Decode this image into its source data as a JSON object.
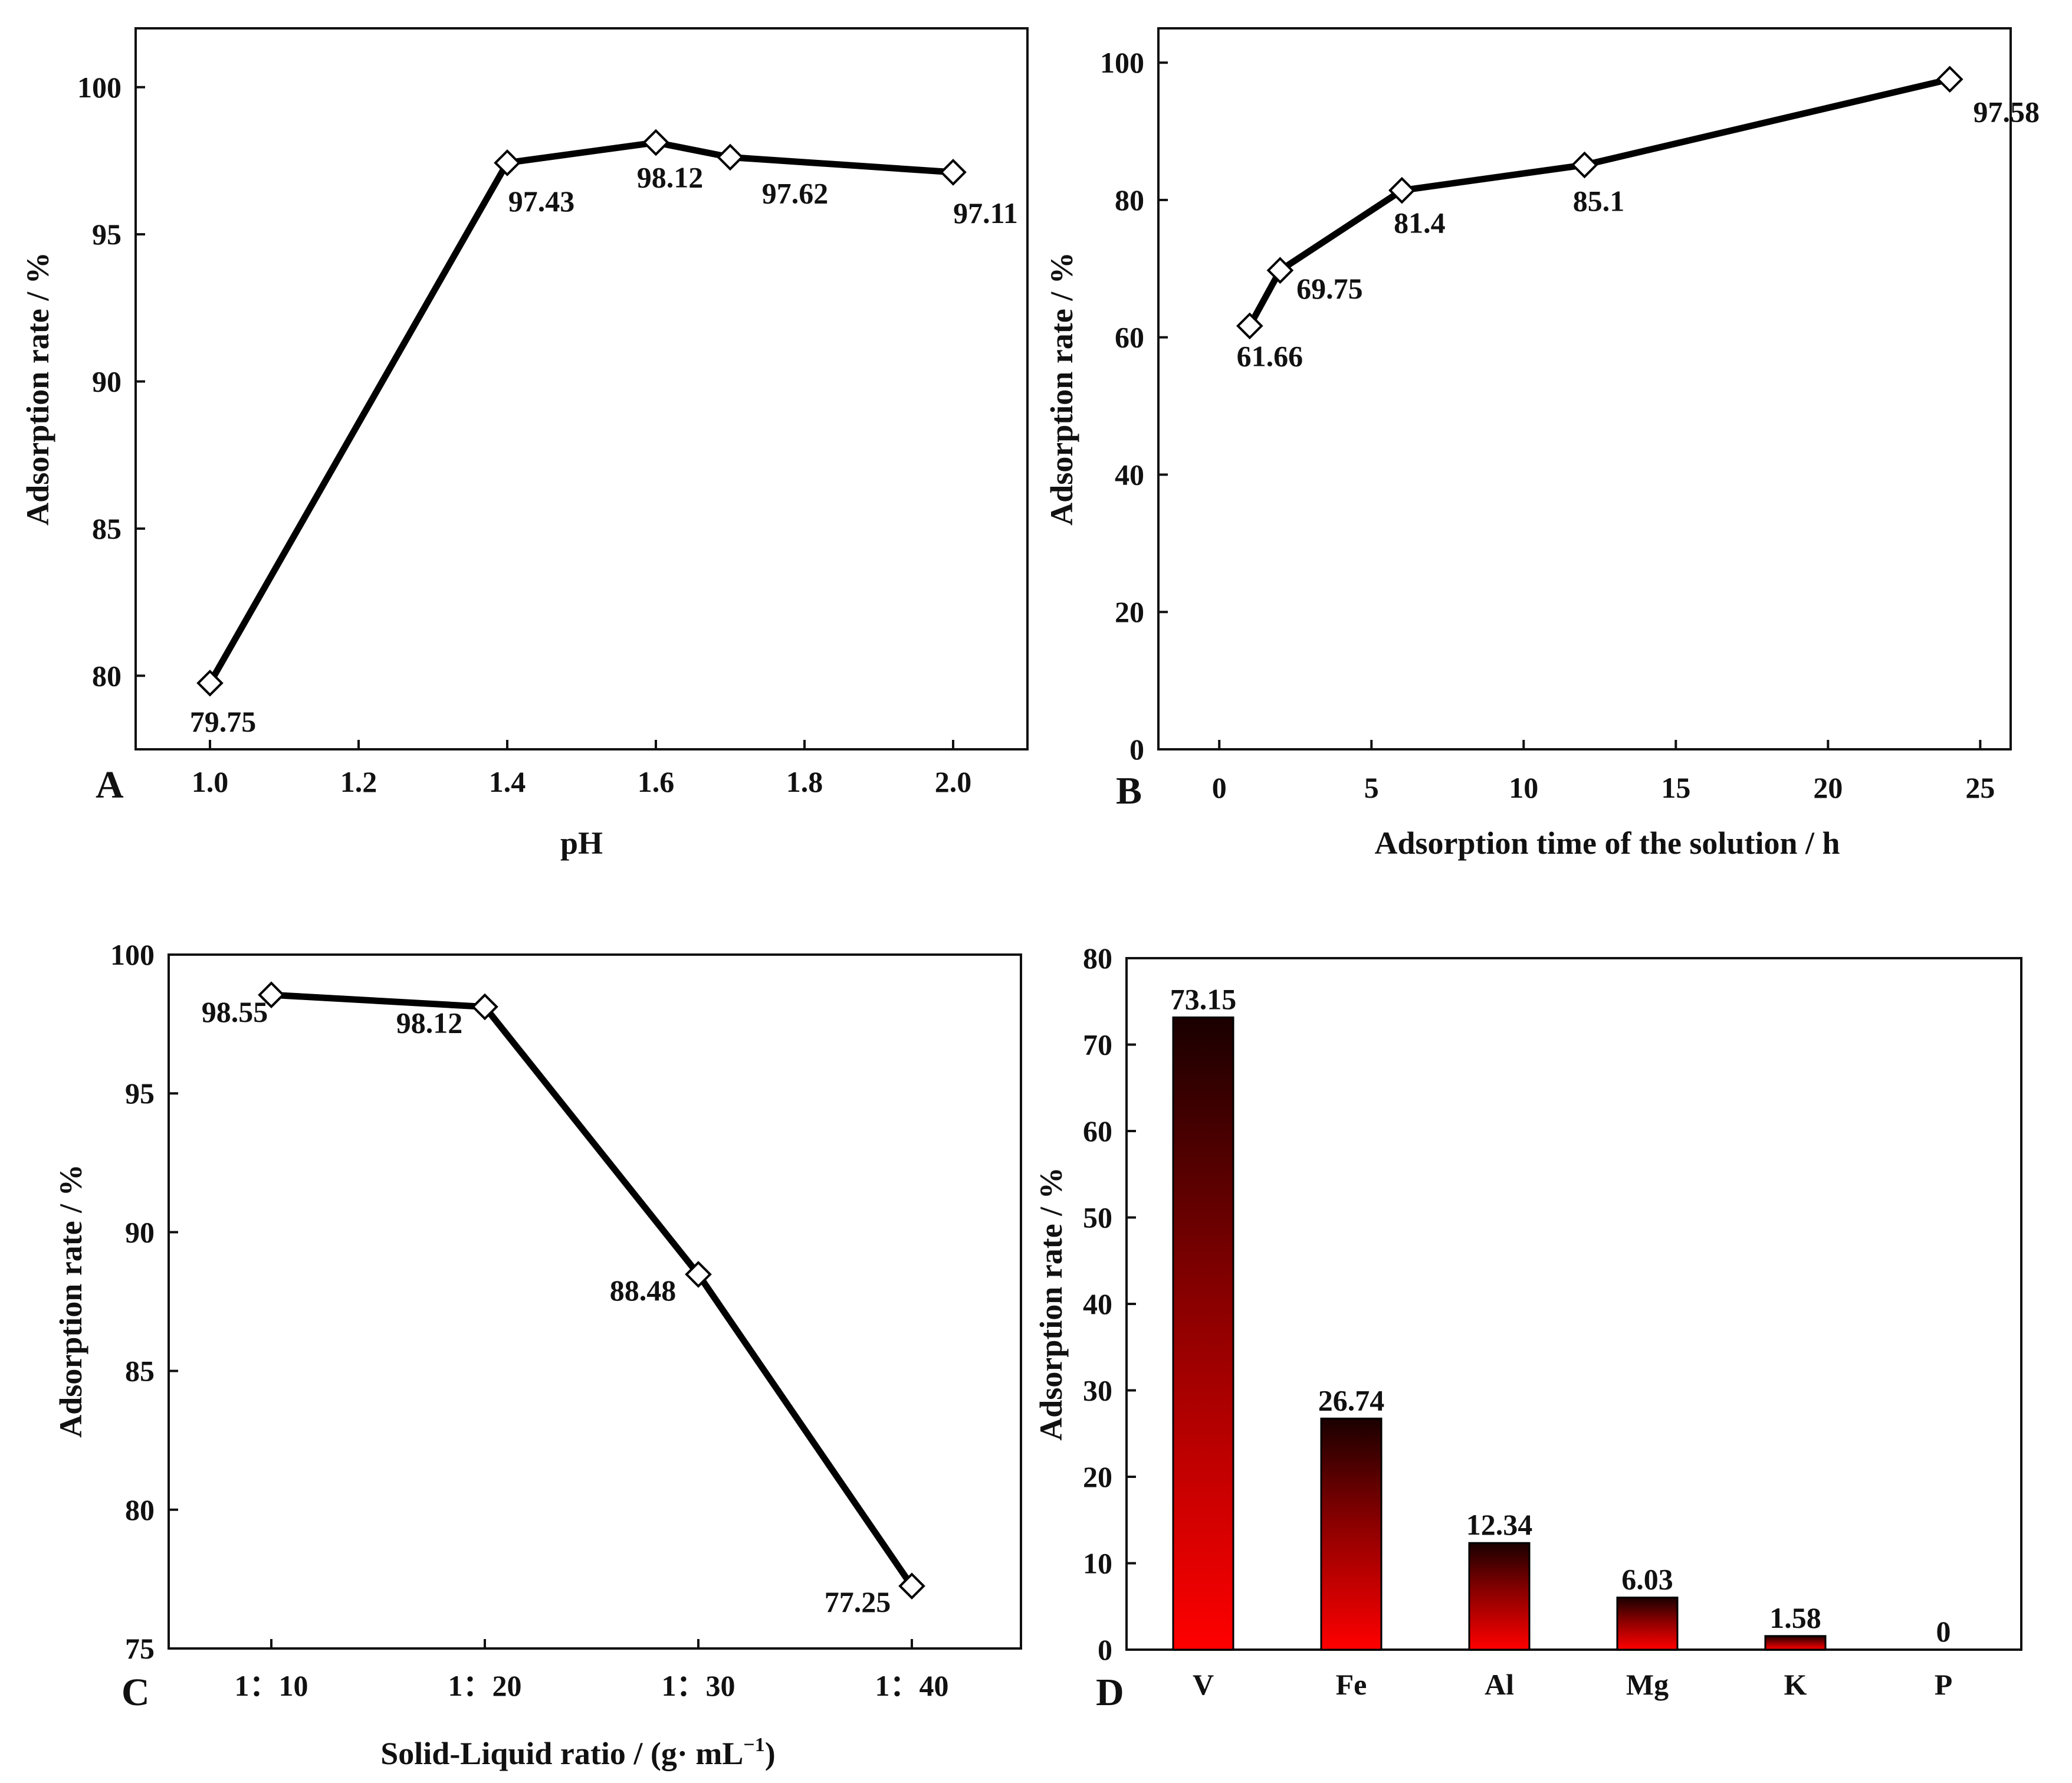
{
  "colors": {
    "line": "#000000",
    "bar_top": "#1a0000",
    "bar_bottom": "#ff0000",
    "background": "#ffffff"
  },
  "chart_data": [
    {
      "panel": "A",
      "type": "line",
      "xlabel": "pH",
      "ylabel": "Adsorption rate / %",
      "x": [
        1.0,
        1.4,
        1.6,
        1.7,
        2.0
      ],
      "values": [
        79.75,
        97.43,
        98.12,
        97.62,
        97.11
      ],
      "labels": [
        "79.75",
        "97.43",
        "98.12",
        "97.62",
        "97.11"
      ],
      "xlim": [
        0.9,
        2.1
      ],
      "ylim": [
        77.5,
        102
      ],
      "xticks": [
        1.0,
        1.2,
        1.4,
        1.6,
        1.8,
        2.0
      ],
      "xtick_labels": [
        "1.0",
        "1.2",
        "1.4",
        "1.6",
        "1.8",
        "2.0"
      ],
      "yticks": [
        80,
        85,
        90,
        95,
        100
      ],
      "ytick_labels": [
        "80",
        "85",
        "90",
        "95",
        "100"
      ],
      "marker": "open-diamond"
    },
    {
      "panel": "B",
      "type": "line",
      "xlabel": "Adsorption time of the solution / h",
      "ylabel": "Adsorption rate / %",
      "x": [
        1,
        2,
        6,
        12,
        24
      ],
      "values": [
        61.66,
        69.75,
        81.4,
        85.1,
        97.58
      ],
      "labels": [
        "61.66",
        "69.75",
        "81.4",
        "85.1",
        "97.58"
      ],
      "xlim": [
        -2,
        26
      ],
      "ylim": [
        0,
        105
      ],
      "xticks": [
        0,
        5,
        10,
        15,
        20,
        25
      ],
      "xtick_labels": [
        "0",
        "5",
        "10",
        "15",
        "20",
        "25"
      ],
      "yticks": [
        0,
        20,
        40,
        60,
        80,
        100
      ],
      "ytick_labels": [
        "0",
        "20",
        "40",
        "60",
        "80",
        "100"
      ],
      "marker": "open-diamond"
    },
    {
      "panel": "C",
      "type": "line",
      "xlabel": "Solid-Liquid ratio / (g· mL",
      "xlabel_sup": "−1",
      "xlabel_end": ")",
      "ylabel": "Adsorption rate / %",
      "categories": [
        "1：10",
        "1：20",
        "1：30",
        "1：40"
      ],
      "values": [
        98.55,
        98.12,
        88.48,
        77.25
      ],
      "labels": [
        "98.55",
        "98.12",
        "88.48",
        "77.25"
      ],
      "ylim": [
        75,
        100
      ],
      "yticks": [
        75,
        80,
        85,
        90,
        95,
        100
      ],
      "ytick_labels": [
        "75",
        "80",
        "85",
        "90",
        "95",
        "100"
      ],
      "marker": "open-diamond"
    },
    {
      "panel": "D",
      "type": "bar",
      "xlabel": "",
      "ylabel": "Adsorption rate / %",
      "categories": [
        "V",
        "Fe",
        "Al",
        "Mg",
        "K",
        "P"
      ],
      "values": [
        73.15,
        26.74,
        12.34,
        6.03,
        1.58,
        0
      ],
      "labels": [
        "73.15",
        "26.74",
        "12.34",
        "6.03",
        "1.58",
        "0"
      ],
      "ylim": [
        0,
        80
      ],
      "yticks": [
        0,
        10,
        20,
        30,
        40,
        50,
        60,
        70,
        80
      ],
      "ytick_labels": [
        "0",
        "10",
        "20",
        "30",
        "40",
        "50",
        "60",
        "70",
        "80"
      ]
    }
  ]
}
